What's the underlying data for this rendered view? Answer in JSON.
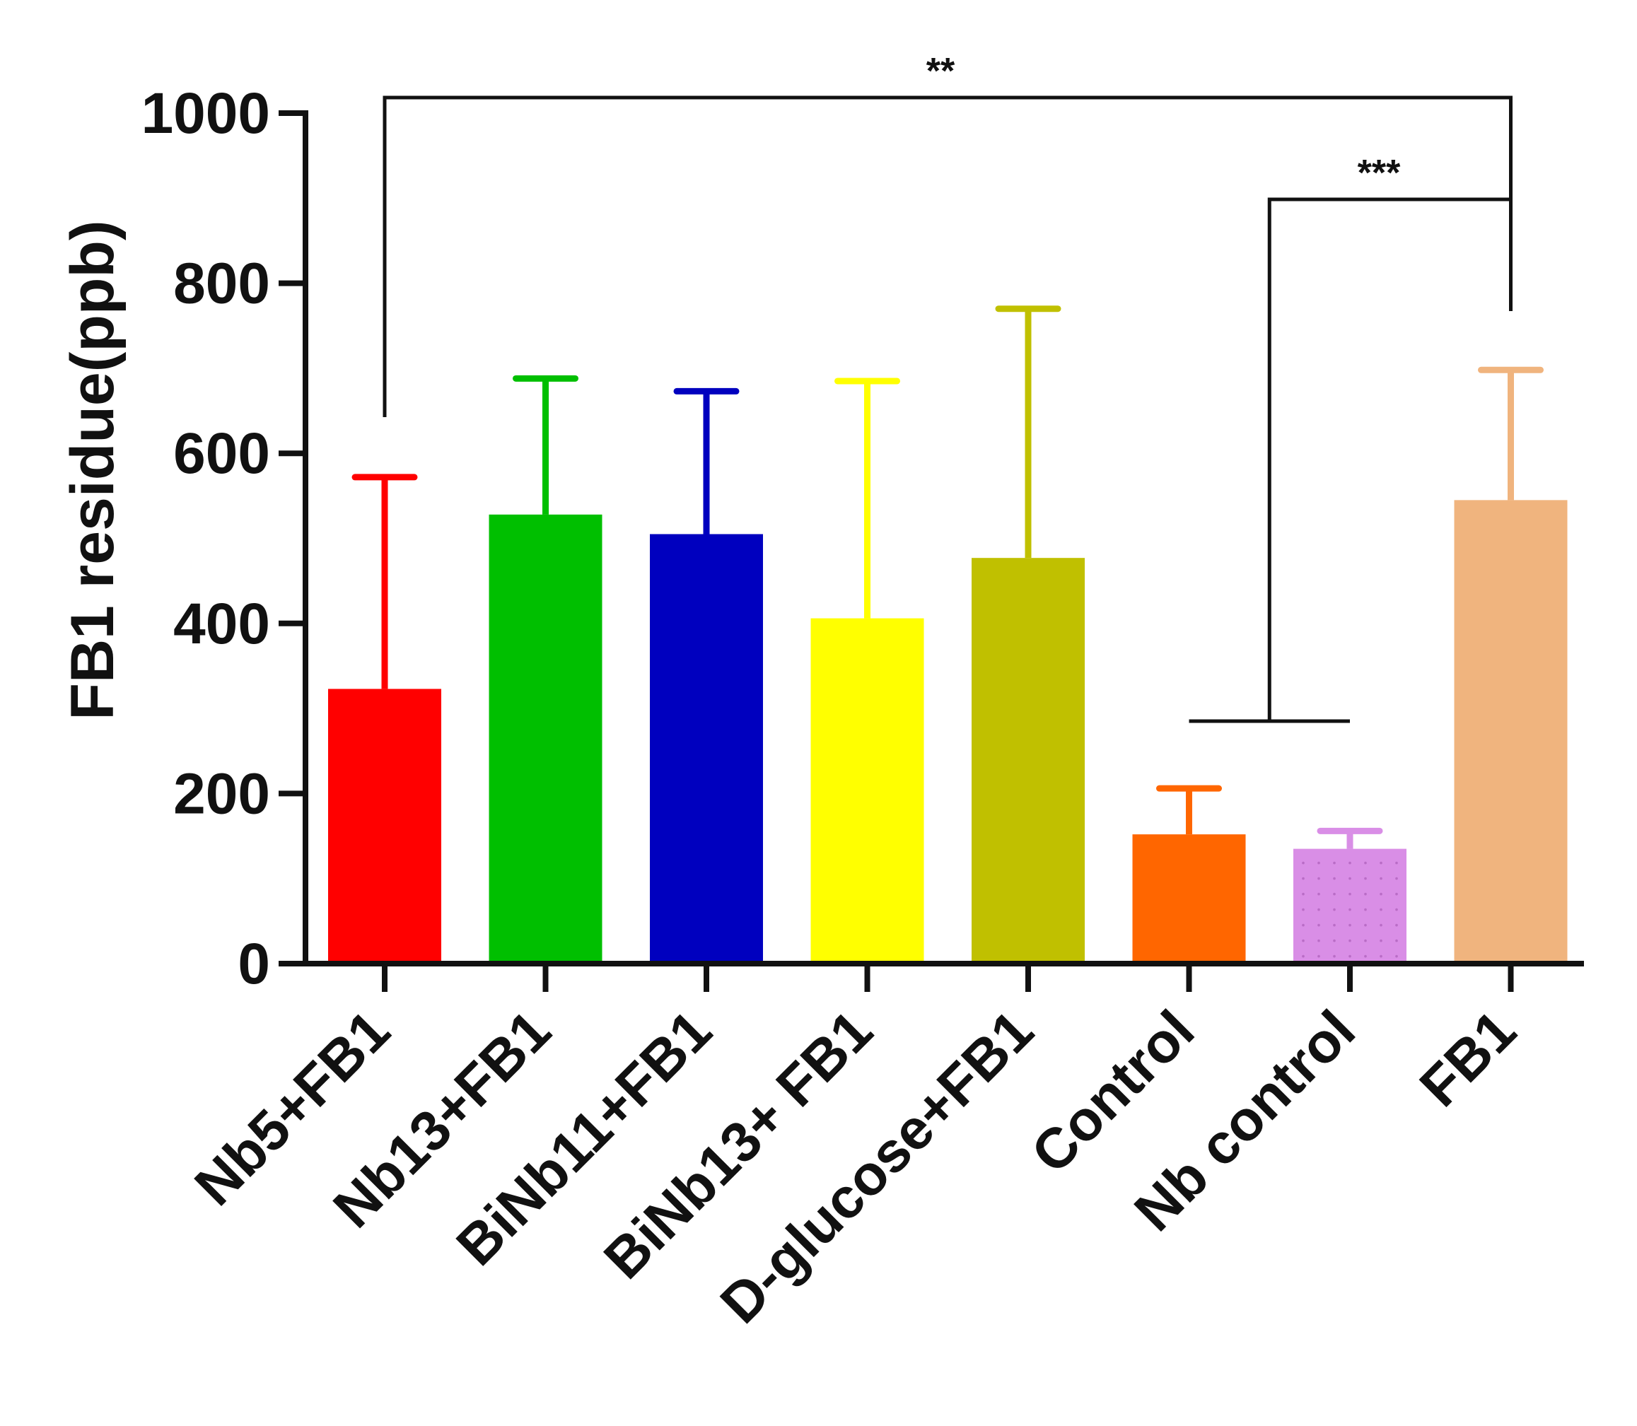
{
  "chart_data": {
    "type": "bar",
    "title": "",
    "xlabel": "",
    "ylabel": "FB1 residue(ppb)",
    "ylim": [
      0,
      1000
    ],
    "yticks": [
      0,
      200,
      400,
      600,
      800,
      1000
    ],
    "ytick_labels": [
      "0",
      "200",
      "400",
      "600",
      "800",
      "1000"
    ],
    "categories": [
      "Nb5+FB1",
      "Nb13+FB1",
      "BiNb11+FB1",
      "BiNb13+ FB1",
      "D-glucose+FB1",
      "Control",
      "Nb control",
      "FB1"
    ],
    "values": [
      323,
      528,
      505,
      406,
      477,
      152,
      135,
      545
    ],
    "error_upper": [
      572,
      688,
      673,
      685,
      770,
      206,
      156,
      698
    ],
    "colors": [
      "#ff0000",
      "#00bf00",
      "#0000bf",
      "#ffff00",
      "#c0c000",
      "#ff6600",
      "#d98ee6",
      "#f0b47e"
    ],
    "significance": [
      {
        "from": "Nb5+FB1",
        "to": "FB1",
        "label": "**"
      },
      {
        "from": "Control + Nb control",
        "to": "FB1",
        "label": "***"
      }
    ]
  }
}
